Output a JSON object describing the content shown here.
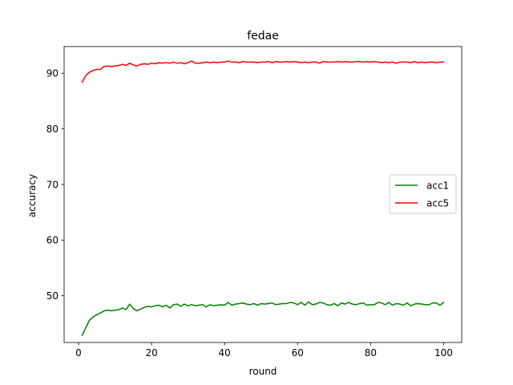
{
  "chart_data": {
    "type": "line",
    "title": "fedae",
    "xlabel": "round",
    "ylabel": "accuracy",
    "xlim": [
      -3.95,
      104.95
    ],
    "ylim": [
      41.6,
      94.8
    ],
    "xticks": [
      0,
      20,
      40,
      60,
      80,
      100
    ],
    "yticks": [
      50,
      60,
      70,
      80,
      90
    ],
    "grid": false,
    "legend_position": "center-right",
    "x": [
      1,
      2,
      3,
      4,
      5,
      6,
      7,
      8,
      9,
      10,
      11,
      12,
      13,
      14,
      15,
      16,
      17,
      18,
      19,
      20,
      21,
      22,
      23,
      24,
      25,
      26,
      27,
      28,
      29,
      30,
      31,
      32,
      33,
      34,
      35,
      36,
      37,
      38,
      39,
      40,
      41,
      42,
      43,
      44,
      45,
      46,
      47,
      48,
      49,
      50,
      51,
      52,
      53,
      54,
      55,
      56,
      57,
      58,
      59,
      60,
      61,
      62,
      63,
      64,
      65,
      66,
      67,
      68,
      69,
      70,
      71,
      72,
      73,
      74,
      75,
      76,
      77,
      78,
      79,
      80,
      81,
      82,
      83,
      84,
      85,
      86,
      87,
      88,
      89,
      90,
      91,
      92,
      93,
      94,
      95,
      96,
      97,
      98,
      99,
      100
    ],
    "series": [
      {
        "name": "acc1",
        "color": "#008000",
        "values": [
          42.9,
          44.3,
          45.6,
          46.2,
          46.6,
          46.9,
          47.3,
          47.4,
          47.3,
          47.4,
          47.5,
          47.8,
          47.5,
          48.5,
          47.7,
          47.3,
          47.6,
          47.9,
          48.1,
          48.0,
          48.2,
          48.3,
          48.0,
          48.3,
          47.8,
          48.4,
          48.5,
          48.1,
          48.5,
          48.2,
          48.4,
          48.2,
          48.3,
          48.4,
          48.0,
          48.4,
          48.2,
          48.3,
          48.4,
          48.3,
          48.8,
          48.3,
          48.5,
          48.6,
          48.7,
          48.5,
          48.4,
          48.6,
          48.3,
          48.6,
          48.5,
          48.6,
          48.7,
          48.4,
          48.5,
          48.6,
          48.6,
          48.8,
          48.7,
          48.4,
          48.8,
          48.3,
          48.9,
          48.4,
          48.5,
          48.8,
          48.7,
          48.4,
          48.3,
          48.6,
          48.2,
          48.7,
          48.5,
          48.8,
          48.5,
          48.4,
          48.6,
          48.7,
          48.3,
          48.4,
          48.4,
          48.8,
          48.7,
          48.4,
          48.8,
          48.3,
          48.6,
          48.5,
          48.3,
          48.7,
          48.2,
          48.5,
          48.6,
          48.5,
          48.4,
          48.4,
          48.7,
          48.7,
          48.3,
          48.8
        ]
      },
      {
        "name": "acc5",
        "color": "#ff0000",
        "values": [
          88.4,
          89.6,
          90.2,
          90.5,
          90.7,
          90.7,
          91.2,
          91.3,
          91.2,
          91.3,
          91.4,
          91.6,
          91.4,
          91.8,
          91.5,
          91.3,
          91.6,
          91.7,
          91.6,
          91.8,
          91.7,
          91.9,
          91.8,
          91.9,
          91.8,
          92.0,
          91.8,
          91.9,
          91.7,
          91.9,
          92.2,
          91.8,
          91.8,
          91.9,
          92.0,
          91.9,
          92.0,
          91.9,
          92.0,
          92.0,
          92.2,
          92.0,
          92.0,
          91.9,
          92.1,
          92.0,
          92.0,
          92.0,
          91.9,
          92.0,
          92.0,
          92.1,
          91.9,
          92.1,
          92.0,
          92.0,
          92.1,
          92.0,
          92.1,
          92.0,
          91.9,
          92.0,
          91.9,
          92.0,
          92.0,
          91.8,
          92.1,
          92.0,
          92.0,
          92.0,
          92.1,
          92.0,
          92.1,
          92.0,
          92.0,
          92.1,
          92.1,
          92.0,
          92.1,
          92.0,
          92.1,
          92.0,
          91.9,
          92.0,
          91.9,
          92.0,
          91.8,
          92.0,
          92.0,
          92.0,
          91.9,
          92.1,
          91.9,
          92.0,
          91.9,
          92.0,
          92.0,
          91.9,
          92.0,
          92.0
        ]
      }
    ]
  }
}
